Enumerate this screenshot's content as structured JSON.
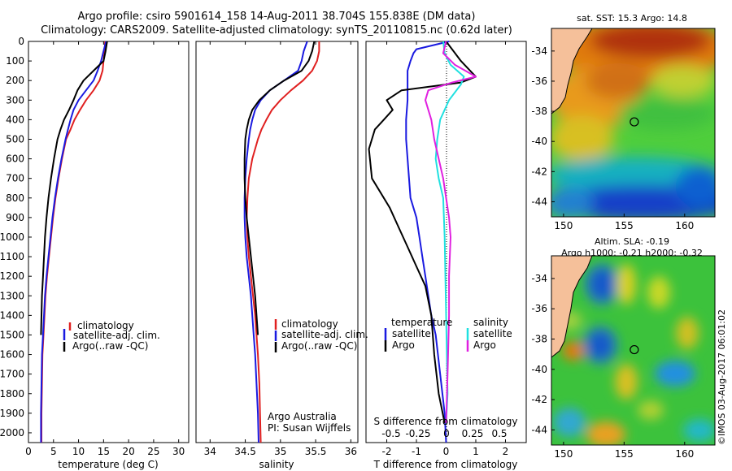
{
  "header": {
    "line1": "Argo profile: csiro 5901614_158 14-Aug-2011 38.704S 155.838E (DM data)",
    "line2": "Climatology: CARS2009. Satellite-adjusted climatology: synTS_20110815.nc (0.62d later)"
  },
  "depth_ticks": [
    "0",
    "100",
    "200",
    "300",
    "400",
    "500",
    "600",
    "700",
    "800",
    "900",
    "1000",
    "1100",
    "1200",
    "1300",
    "1400",
    "1500",
    "1600",
    "1700",
    "1800",
    "1900",
    "2000"
  ],
  "colors": {
    "climatology": "#e02020",
    "satellite": "#1a1ae0",
    "argo": "#000000",
    "argo_sal": "#e020e0",
    "sat_sal": "#20e0e0"
  },
  "chart_data": [
    {
      "type": "line",
      "id": "temperature",
      "xlabel": "temperature (deg C)",
      "xlim": [
        0,
        32
      ],
      "xticks": [
        0,
        5,
        10,
        15,
        20,
        25,
        30
      ],
      "ylim": [
        2050,
        0
      ],
      "legend": [
        "climatology",
        "satellite-adj. clim.",
        "Argo(..raw -QC)"
      ],
      "series": [
        {
          "name": "climatology",
          "color": "#e02020",
          "x": [
            15.3,
            15.2,
            15.0,
            14.8,
            14.2,
            13.0,
            11.5,
            10.3,
            9.2,
            8.4,
            7.5,
            6.7,
            6.0,
            5.4,
            4.9,
            4.5,
            4.1,
            3.7,
            3.4,
            3.2,
            3.0,
            2.8,
            2.7,
            2.6,
            2.6
          ],
          "y": [
            0,
            50,
            100,
            150,
            200,
            250,
            300,
            350,
            400,
            450,
            500,
            600,
            700,
            800,
            900,
            1000,
            1100,
            1200,
            1300,
            1400,
            1500,
            1600,
            1750,
            1900,
            2050
          ]
        },
        {
          "name": "satellite-adj. clim.",
          "color": "#1a1ae0",
          "x": [
            15.5,
            15.0,
            14.5,
            13.8,
            13.0,
            11.5,
            10.0,
            9.0,
            8.4,
            7.9,
            7.4,
            6.6,
            5.9,
            5.3,
            4.8,
            4.4,
            4.0,
            3.6,
            3.3,
            3.1,
            2.9,
            2.7,
            2.6,
            2.5,
            2.5
          ],
          "y": [
            0,
            50,
            100,
            150,
            200,
            250,
            300,
            350,
            400,
            450,
            500,
            600,
            700,
            800,
            900,
            1000,
            1100,
            1200,
            1300,
            1400,
            1500,
            1600,
            1750,
            1900,
            2050
          ]
        },
        {
          "name": "Argo(..raw -QC)",
          "color": "#000000",
          "x": [
            15.7,
            15.4,
            15.0,
            13.0,
            11.0,
            9.8,
            9.0,
            8.1,
            7.1,
            6.4,
            5.8,
            5.1,
            4.5,
            4.0,
            3.6,
            3.3,
            3.1,
            2.9,
            2.7,
            2.6,
            2.5
          ],
          "y": [
            0,
            50,
            100,
            150,
            200,
            250,
            300,
            350,
            400,
            450,
            500,
            600,
            700,
            800,
            900,
            1000,
            1100,
            1200,
            1300,
            1400,
            1500
          ]
        }
      ]
    },
    {
      "type": "line",
      "id": "salinity",
      "xlabel": "salinity",
      "xlim": [
        33.8,
        36.1
      ],
      "xticks": [
        34,
        34.5,
        35,
        35.5,
        36
      ],
      "ylim": [
        2050,
        0
      ],
      "legend": [
        "climatology",
        "satellite-adj. clim.",
        "Argo(..raw -QC)"
      ],
      "annotation": [
        "Argo Australia",
        "PI: Susan Wijffels"
      ],
      "series": [
        {
          "name": "climatology",
          "color": "#e02020",
          "x": [
            35.55,
            35.55,
            35.52,
            35.45,
            35.32,
            35.15,
            35.0,
            34.88,
            34.8,
            34.73,
            34.68,
            34.6,
            34.55,
            34.53,
            34.52,
            34.53,
            34.55,
            34.58,
            34.61,
            34.64,
            34.66,
            34.68,
            34.7,
            34.71,
            34.72
          ],
          "y": [
            0,
            50,
            100,
            150,
            200,
            250,
            300,
            350,
            400,
            450,
            500,
            600,
            700,
            800,
            900,
            1000,
            1100,
            1200,
            1300,
            1400,
            1500,
            1600,
            1750,
            1900,
            2050
          ]
        },
        {
          "name": "satellite-adj. clim.",
          "color": "#1a1ae0",
          "x": [
            35.38,
            35.33,
            35.3,
            35.25,
            35.05,
            34.85,
            34.72,
            34.64,
            34.6,
            34.57,
            34.55,
            34.52,
            34.5,
            34.49,
            34.49,
            34.5,
            34.52,
            34.55,
            34.58,
            34.6,
            34.62,
            34.64,
            34.66,
            34.68,
            34.69
          ],
          "y": [
            0,
            50,
            100,
            150,
            200,
            250,
            300,
            350,
            400,
            450,
            500,
            600,
            700,
            800,
            900,
            1000,
            1100,
            1200,
            1300,
            1400,
            1500,
            1600,
            1750,
            1900,
            2050
          ]
        },
        {
          "name": "Argo(..raw -QC)",
          "color": "#000000",
          "x": [
            35.48,
            35.45,
            35.4,
            35.3,
            35.05,
            34.85,
            34.7,
            34.6,
            34.55,
            34.52,
            34.5,
            34.49,
            34.49,
            34.5,
            34.52,
            34.55,
            34.58,
            34.61,
            34.64,
            34.66,
            34.68
          ],
          "y": [
            0,
            50,
            100,
            150,
            200,
            250,
            300,
            350,
            400,
            450,
            500,
            600,
            700,
            800,
            900,
            1000,
            1100,
            1200,
            1300,
            1400,
            1500
          ]
        }
      ]
    },
    {
      "type": "line",
      "id": "difference",
      "xlabel": "T difference from climatology",
      "xlim": [
        -2.7,
        2.7
      ],
      "xticks": [
        -2,
        -1,
        0,
        1,
        2
      ],
      "sticks_label": "S difference from climatology",
      "sticks": [
        "-0.5",
        "-0.25",
        "0",
        "0.25",
        "0.5"
      ],
      "ylim": [
        2050,
        0
      ],
      "legend": {
        "temperature": "temperature",
        "salinity": "salinity",
        "satellite": "satellite",
        "argo": "Argo"
      },
      "series": [
        {
          "name": "T satellite",
          "color": "#1a1ae0",
          "x": [
            0.1,
            -1.0,
            -1.1,
            -1.2,
            -1.3,
            -1.3,
            -1.3,
            -1.35,
            -1.35,
            -1.3,
            -1.25,
            -1.2,
            -1.0,
            -0.9,
            -0.8,
            -0.7,
            -0.6,
            -0.5,
            -0.35,
            -0.2,
            -0.05,
            0.0
          ],
          "y": [
            0,
            40,
            60,
            100,
            150,
            200,
            300,
            400,
            500,
            600,
            700,
            800,
            900,
            1000,
            1100,
            1200,
            1300,
            1400,
            1500,
            1700,
            1900,
            2050
          ]
        },
        {
          "name": "T Argo",
          "color": "#000000",
          "x": [
            0.0,
            0.25,
            0.5,
            1.0,
            0.5,
            -1.5,
            -2.0,
            -1.8,
            -2.1,
            -2.4,
            -2.6,
            -2.5,
            -1.9,
            -1.6,
            -1.3,
            -1.0,
            -0.7,
            -0.5,
            -0.4,
            -0.25,
            -0.05
          ],
          "y": [
            0,
            50,
            100,
            180,
            210,
            250,
            300,
            350,
            400,
            450,
            550,
            700,
            850,
            950,
            1050,
            1150,
            1250,
            1400,
            1600,
            1800,
            1950
          ]
        },
        {
          "name": "S satellite",
          "color": "#20e0e0",
          "x": [
            -0.1,
            -0.05,
            0.15,
            0.6,
            0.5,
            0.1,
            -0.2,
            -0.3,
            -0.35,
            -0.25,
            -0.1,
            -0.05,
            0.0,
            0.05,
            0.0
          ],
          "y": [
            0,
            60,
            120,
            180,
            220,
            300,
            400,
            500,
            600,
            700,
            800,
            1000,
            1400,
            1800,
            1950
          ]
        },
        {
          "name": "S Argo",
          "color": "#e020e0",
          "x": [
            0.0,
            -0.1,
            0.3,
            1.0,
            0.2,
            -0.6,
            -0.7,
            -0.5,
            -0.4,
            -0.1,
            0.1,
            0.15,
            0.1,
            0.1,
            0.05,
            0.0
          ],
          "y": [
            0,
            60,
            120,
            180,
            210,
            250,
            300,
            400,
            500,
            700,
            900,
            1000,
            1200,
            1400,
            1700,
            1950
          ]
        }
      ]
    },
    {
      "type": "heatmap",
      "id": "sst_map",
      "title": "sat. SST: 15.3 Argo: 14.8",
      "xticks": [
        150,
        155,
        160
      ],
      "yticks": [
        -34,
        -36,
        -38,
        -40,
        -42,
        -44
      ],
      "xlim": [
        149,
        162.5
      ],
      "ylim": [
        -45,
        -32.5
      ],
      "marker": {
        "lon": 155.84,
        "lat": -38.7
      }
    },
    {
      "type": "heatmap",
      "id": "sla_map",
      "title": "Altim. SLA: -0.19",
      "subtitle": "Argo h1000: -0.21 h2000: -0.32",
      "xticks": [
        150,
        155,
        160
      ],
      "yticks": [
        -34,
        -36,
        -38,
        -40,
        -42,
        -44
      ],
      "xlim": [
        149,
        162.5
      ],
      "ylim": [
        -45,
        -32.5
      ],
      "marker": {
        "lon": 155.84,
        "lat": -38.7
      }
    }
  ],
  "side_label": "©IMOS 03-Aug-2017 06:01:02"
}
